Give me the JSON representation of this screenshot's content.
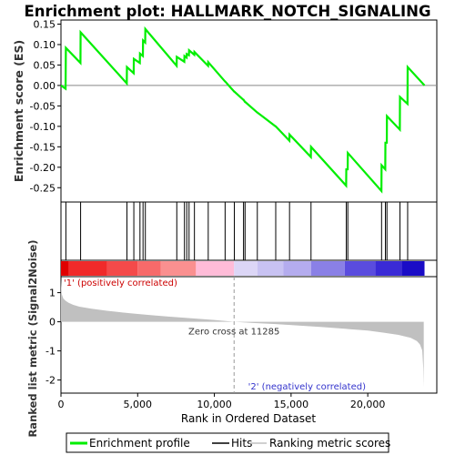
{
  "chart_data": {
    "type": "line",
    "title": "Enrichment plot: HALLMARK_NOTCH_SIGNALING",
    "xlabel": "Rank in Ordered Dataset",
    "ylabel_top": "Enrichment score (ES)",
    "ylabel_bottom": "Ranked list metric (Signal2Noise)",
    "x_range": [
      0,
      24500
    ],
    "es_ylim": [
      -0.285,
      0.16
    ],
    "metric_ylim": [
      -2.45,
      1.55
    ],
    "x_ticks": [
      0,
      5000,
      10000,
      15000,
      20000
    ],
    "x_tick_labels": [
      "0",
      "5,000",
      "10,000",
      "15,000",
      "20,000"
    ],
    "es_ticks": [
      0.15,
      0.1,
      0.05,
      0.0,
      -0.05,
      -0.1,
      -0.15,
      -0.2,
      -0.25
    ],
    "es_tick_labels": [
      "0.15",
      "0.10",
      "0.05",
      "0.00",
      "-0.05",
      "-0.10",
      "-0.15",
      "-0.20",
      "-0.25"
    ],
    "metric_ticks": [
      1,
      0,
      -1,
      -2
    ],
    "metric_tick_labels": [
      "1",
      "0",
      "-1",
      "-2"
    ],
    "hits": [
      320,
      1280,
      4300,
      4750,
      5150,
      5350,
      5500,
      7550,
      8050,
      8200,
      8350,
      8700,
      9600,
      10700,
      11300,
      11900,
      12000,
      12800,
      14000,
      14900,
      16300,
      18600,
      18700,
      20900,
      21150,
      21250,
      22100,
      22600
    ],
    "es_curve": {
      "x": [
        0,
        300,
        320,
        1270,
        1280,
        4290,
        4300,
        4740,
        4750,
        5140,
        5150,
        5340,
        5350,
        5490,
        5500,
        7540,
        7550,
        8040,
        8050,
        8190,
        8200,
        8340,
        8350,
        8690,
        8700,
        9590,
        9600,
        10690,
        10700,
        11290,
        11300,
        11890,
        11900,
        11990,
        12000,
        12790,
        12800,
        13990,
        14000,
        14890,
        14900,
        16290,
        16300,
        18590,
        18600,
        18690,
        18700,
        20890,
        20900,
        21140,
        21150,
        21240,
        21250,
        22090,
        22100,
        22590,
        22600,
        23700
      ],
      "y": [
        0.0,
        -0.008,
        0.092,
        0.055,
        0.13,
        0.005,
        0.045,
        0.03,
        0.065,
        0.055,
        0.078,
        0.072,
        0.11,
        0.105,
        0.138,
        0.048,
        0.07,
        0.058,
        0.072,
        0.068,
        0.077,
        0.074,
        0.086,
        0.075,
        0.082,
        0.048,
        0.057,
        0.01,
        0.01,
        -0.015,
        -0.015,
        -0.035,
        -0.035,
        -0.04,
        -0.04,
        -0.066,
        -0.066,
        -0.1,
        -0.1,
        -0.135,
        -0.12,
        -0.175,
        -0.15,
        -0.245,
        -0.205,
        -0.205,
        -0.165,
        -0.258,
        -0.195,
        -0.205,
        -0.14,
        -0.14,
        -0.075,
        -0.108,
        -0.028,
        -0.045,
        0.045,
        0.0
      ]
    },
    "metric_curve": {
      "x": [
        0,
        50,
        150,
        300,
        500,
        800,
        1200,
        2000,
        3000,
        4000,
        5000,
        6000,
        7000,
        8000,
        9000,
        10000,
        11285,
        12500,
        14000,
        15500,
        17000,
        18500,
        20000,
        21000,
        22000,
        22800,
        23200,
        23400,
        23550,
        23620,
        23650
      ],
      "y": [
        1.45,
        0.95,
        0.8,
        0.72,
        0.65,
        0.58,
        0.52,
        0.45,
        0.38,
        0.32,
        0.27,
        0.22,
        0.18,
        0.14,
        0.1,
        0.06,
        0.0,
        -0.04,
        -0.08,
        -0.13,
        -0.18,
        -0.24,
        -0.3,
        -0.37,
        -0.45,
        -0.55,
        -0.66,
        -0.78,
        -0.98,
        -1.6,
        -2.25
      ]
    },
    "zero_cross_x": 11285,
    "zero_cross_label": "Zero cross at 11285",
    "pos_label": "'1' (positively correlated)",
    "neg_label": "'2' (negatively correlated)",
    "band_segments": [
      {
        "from": 0,
        "to": 500,
        "color": "#e00000"
      },
      {
        "from": 500,
        "to": 3000,
        "color": "#f02a2a"
      },
      {
        "from": 3000,
        "to": 5000,
        "color": "#f44a4a"
      },
      {
        "from": 5000,
        "to": 6500,
        "color": "#f76a6a"
      },
      {
        "from": 6500,
        "to": 8800,
        "color": "#fa9090"
      },
      {
        "from": 8800,
        "to": 11285,
        "color": "#ffbcd8"
      },
      {
        "from": 11285,
        "to": 12800,
        "color": "#dcd6f6"
      },
      {
        "from": 12800,
        "to": 14500,
        "color": "#c8c2f2"
      },
      {
        "from": 14500,
        "to": 16300,
        "color": "#b4acee"
      },
      {
        "from": 16300,
        "to": 18500,
        "color": "#8a80e6"
      },
      {
        "from": 18500,
        "to": 20500,
        "color": "#5a4cde"
      },
      {
        "from": 20500,
        "to": 22200,
        "color": "#3a2ad6"
      },
      {
        "from": 22200,
        "to": 23700,
        "color": "#1a0cc6"
      }
    ],
    "legend": [
      {
        "label": "Enrichment profile",
        "color": "#00ee00"
      },
      {
        "label": "Hits",
        "color": "#000000"
      },
      {
        "label": "Ranking metric scores",
        "color": "#c0c0c0"
      }
    ]
  }
}
